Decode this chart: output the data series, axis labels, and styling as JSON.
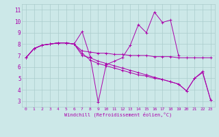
{
  "background_color": "#cce8e8",
  "line_color": "#aa00aa",
  "grid_color": "#aacccc",
  "xlabel": "Windchill (Refroidissement éolien,°C)",
  "xlim": [
    -0.5,
    23.5
  ],
  "ylim": [
    2.5,
    11.5
  ],
  "yticks": [
    3,
    4,
    5,
    6,
    7,
    8,
    9,
    10,
    11
  ],
  "xticks": [
    0,
    1,
    2,
    3,
    4,
    5,
    6,
    7,
    8,
    9,
    10,
    11,
    12,
    13,
    14,
    15,
    16,
    17,
    18,
    19,
    20,
    21,
    22,
    23
  ],
  "series": [
    {
      "x": [
        0,
        1,
        2,
        3,
        4,
        5,
        6,
        7,
        8,
        9,
        10,
        11,
        12,
        13,
        14,
        15,
        16,
        17,
        18,
        19
      ],
      "y": [
        6.8,
        7.6,
        7.9,
        8.0,
        8.1,
        8.1,
        8.0,
        9.1,
        6.9,
        2.9,
        6.2,
        6.5,
        6.8,
        7.9,
        9.7,
        9.0,
        10.8,
        9.9,
        10.1,
        7.0
      ]
    },
    {
      "x": [
        0,
        1,
        2,
        3,
        4,
        5,
        6,
        7,
        8,
        9,
        10,
        11,
        12,
        13,
        14,
        15,
        16,
        17,
        18,
        19,
        20,
        21,
        22,
        23
      ],
      "y": [
        6.8,
        7.6,
        7.9,
        8.0,
        8.1,
        8.1,
        8.0,
        7.4,
        7.3,
        7.2,
        7.2,
        7.1,
        7.1,
        7.0,
        7.0,
        7.0,
        6.9,
        6.9,
        6.9,
        6.8,
        6.8,
        6.8,
        6.8,
        6.8
      ]
    },
    {
      "x": [
        0,
        1,
        2,
        3,
        4,
        5,
        6,
        7,
        8,
        9,
        10,
        11,
        12,
        13,
        14,
        15,
        16,
        17,
        18,
        19,
        20,
        21,
        22,
        23
      ],
      "y": [
        6.8,
        7.6,
        7.9,
        8.0,
        8.1,
        8.1,
        8.0,
        7.2,
        6.6,
        6.3,
        6.1,
        5.9,
        5.7,
        5.5,
        5.3,
        5.2,
        5.0,
        4.9,
        4.7,
        4.5,
        3.9,
        5.0,
        5.5,
        3.1
      ]
    },
    {
      "x": [
        0,
        1,
        2,
        3,
        4,
        5,
        6,
        7,
        8,
        9,
        10,
        11,
        12,
        13,
        14,
        15,
        16,
        17,
        18,
        19,
        20,
        21,
        22,
        23
      ],
      "y": [
        6.8,
        7.6,
        7.9,
        8.0,
        8.1,
        8.1,
        8.0,
        7.0,
        6.8,
        6.5,
        6.3,
        6.1,
        5.9,
        5.7,
        5.5,
        5.3,
        5.1,
        4.9,
        4.7,
        4.5,
        3.9,
        5.0,
        5.6,
        3.1
      ]
    }
  ]
}
